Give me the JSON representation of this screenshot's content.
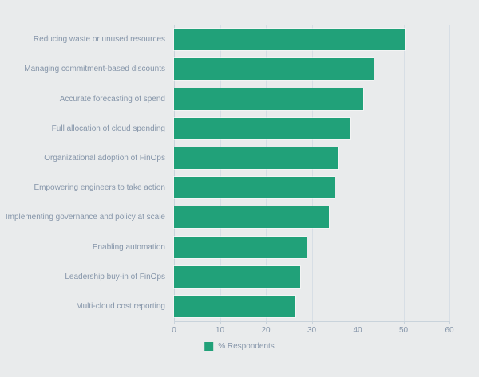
{
  "chart_data": {
    "type": "bar",
    "orientation": "horizontal",
    "title": "",
    "xlabel": "",
    "ylabel": "",
    "categories": [
      "Reducing waste or unused resources",
      "Managing commitment-based discounts",
      "Accurate forecasting of spend",
      "Full allocation of cloud spending",
      "Organizational adoption of FinOps",
      "Empowering engineers to take action",
      "Implementing governance and policy at scale",
      "Enabling automation",
      "Leadership buy-in of FinOps",
      "Multi-cloud cost reporting"
    ],
    "series": [
      {
        "name": "% Respondents",
        "values": [
          50.3,
          43.4,
          41.3,
          38.5,
          35.8,
          35.0,
          33.7,
          28.9,
          27.5,
          26.5
        ]
      }
    ],
    "xlim": [
      0,
      60
    ],
    "xticks": [
      0,
      10,
      20,
      30,
      40,
      50,
      60
    ],
    "grid": true,
    "legend_position": "bottom-center"
  },
  "legend": {
    "label": "% Respondents"
  },
  "colors": {
    "background": "#e9ebec",
    "bar": "#21a179",
    "grid": "#d7dee5",
    "axis": "#c9d3db",
    "text": "#8595a9"
  }
}
